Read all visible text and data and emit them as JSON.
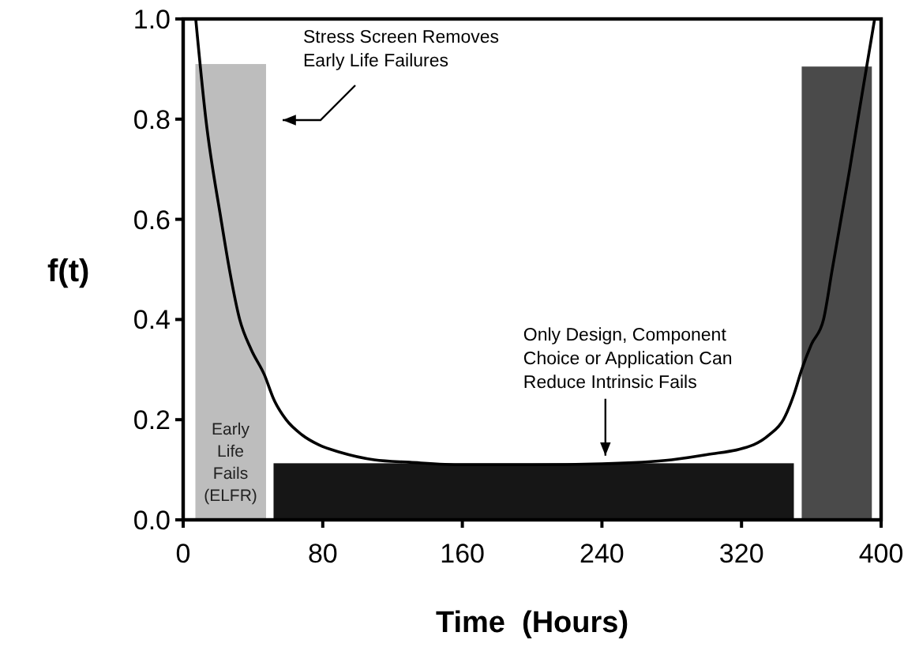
{
  "chart_data": {
    "type": "histogram",
    "xlabel": "Time  (Hours)",
    "ylabel": "f(t)",
    "bins": [
      7,
      47.5,
      51.8,
      350,
      354.5,
      394.7
    ],
    "values": [
      0.91,
      null,
      0.113,
      null,
      0.905
    ],
    "colors": [
      "#bdbdbd",
      null,
      "#161616",
      null,
      "#4a4a4a"
    ],
    "series": [
      {
        "type": "line",
        "color": "#000000",
        "x": [
          7.2,
          13,
          21.7,
          26.5,
          32.4,
          39,
          46.5,
          52,
          59,
          68,
          77.6,
          90,
          109.5,
          130,
          160,
          200,
          240,
          280,
          300,
          327,
          336,
          344,
          350,
          354.5,
          360,
          367,
          372,
          377,
          382,
          386.7,
          391.5,
          396.3
        ],
        "values": [
          1.0,
          0.8,
          0.6,
          0.5,
          0.4,
          0.34,
          0.29,
          0.24,
          0.2,
          0.17,
          0.15,
          0.135,
          0.12,
          0.115,
          0.11,
          0.11,
          0.112,
          0.12,
          0.13,
          0.15,
          0.17,
          0.2,
          0.25,
          0.3,
          0.35,
          0.4,
          0.5,
          0.6,
          0.7,
          0.8,
          0.9,
          1.0
        ]
      }
    ],
    "xlim": [
      0,
      400
    ],
    "xticks": [
      0,
      80,
      160,
      240,
      320,
      400
    ],
    "ylim": [
      0,
      1.0
    ],
    "yticks": [
      {
        "value": 0,
        "label": "0.0"
      },
      {
        "value": 0.2,
        "label": "0.2"
      },
      {
        "value": 0.4,
        "label": "0.4"
      },
      {
        "value": 0.6,
        "label": "0.6"
      },
      {
        "value": 0.8,
        "label": "0.8"
      },
      {
        "value": 1.0,
        "label": "1.0"
      }
    ],
    "grid": false,
    "line_style": "solid",
    "marker": "none",
    "annotations": [
      "Stress Screen Removes\nEarly Life Failures",
      {
        "text": "Only Design, Component\nChoice or Application Can\nReduce Intrinsic Fails",
        "x": 242,
        "y": 0.125
      },
      "Early\nLife\nFails\n(ELFR)"
    ]
  }
}
